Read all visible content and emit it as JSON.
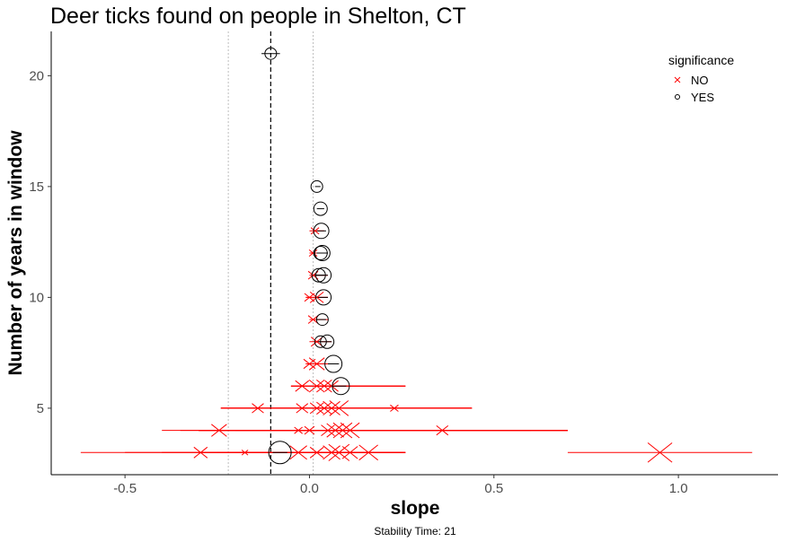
{
  "chart_data": {
    "type": "scatter",
    "title": "Deer ticks found on people in Shelton, CT",
    "xlabel": "slope",
    "ylabel": "Number of years in window",
    "caption": "Stability Time: 21",
    "xlim": [
      -0.7,
      1.27
    ],
    "ylim": [
      2.0,
      22.0
    ],
    "x_ticks": [
      -0.5,
      0.0,
      0.5,
      1.0
    ],
    "x_tick_labels": [
      "-0.5",
      "0.0",
      "0.5",
      "1.0"
    ],
    "y_ticks": [
      5,
      10,
      15,
      20
    ],
    "y_tick_labels": [
      "5",
      "10",
      "15",
      "20"
    ],
    "grid": false,
    "reference_lines": {
      "mean_slope_dashed": -0.105,
      "dotted": [
        -0.22,
        0.01
      ]
    },
    "legend": {
      "title": "significance",
      "position": "top-right",
      "entries": [
        {
          "label": "NO",
          "symbol": "x",
          "color": "#ff0000"
        },
        {
          "label": "YES",
          "symbol": "circle",
          "color": "#000000"
        }
      ]
    },
    "series": [
      {
        "name": "NO",
        "color": "#ff0000",
        "points": [
          {
            "x": -0.295,
            "y": 3,
            "lo": -0.62,
            "hi": 0.26,
            "size": 6
          },
          {
            "x": -0.175,
            "y": 3,
            "lo": -0.5,
            "hi": 0.2,
            "size": 2
          },
          {
            "x": -0.03,
            "y": 3,
            "lo": -0.4,
            "hi": 0.25,
            "size": 8
          },
          {
            "x": 0.02,
            "y": 3,
            "lo": -0.3,
            "hi": 0.26,
            "size": 6
          },
          {
            "x": 0.06,
            "y": 3,
            "lo": -0.25,
            "hi": 0.26,
            "size": 8
          },
          {
            "x": 0.08,
            "y": 3,
            "lo": -0.3,
            "hi": 0.26,
            "size": 10
          },
          {
            "x": 0.11,
            "y": 3,
            "lo": -0.2,
            "hi": 0.26,
            "size": 7
          },
          {
            "x": 0.16,
            "y": 3,
            "lo": -0.2,
            "hi": 0.26,
            "size": 9
          },
          {
            "x": 0.95,
            "y": 3,
            "lo": 0.7,
            "hi": 1.2,
            "size": 12
          },
          {
            "x": -0.245,
            "y": 4,
            "lo": -0.4,
            "hi": 0.7,
            "size": 7
          },
          {
            "x": -0.03,
            "y": 4,
            "lo": -0.3,
            "hi": 0.6,
            "size": 3
          },
          {
            "x": 0.0,
            "y": 4,
            "lo": -0.35,
            "hi": 0.7,
            "size": 4
          },
          {
            "x": 0.05,
            "y": 4,
            "lo": -0.3,
            "hi": 0.7,
            "size": 6
          },
          {
            "x": 0.07,
            "y": 4,
            "lo": -0.3,
            "hi": 0.7,
            "size": 8
          },
          {
            "x": 0.09,
            "y": 4,
            "lo": -0.3,
            "hi": 0.7,
            "size": 9
          },
          {
            "x": 0.11,
            "y": 4,
            "lo": -0.3,
            "hi": 0.7,
            "size": 9
          },
          {
            "x": 0.36,
            "y": 4,
            "lo": -0.2,
            "hi": 0.7,
            "size": 5
          },
          {
            "x": -0.14,
            "y": 5,
            "lo": -0.24,
            "hi": 0.44,
            "size": 5
          },
          {
            "x": -0.02,
            "y": 5,
            "lo": -0.24,
            "hi": 0.44,
            "size": 5
          },
          {
            "x": 0.02,
            "y": 5,
            "lo": -0.24,
            "hi": 0.44,
            "size": 6
          },
          {
            "x": 0.04,
            "y": 5,
            "lo": -0.24,
            "hi": 0.44,
            "size": 7
          },
          {
            "x": 0.06,
            "y": 5,
            "lo": -0.24,
            "hi": 0.44,
            "size": 8
          },
          {
            "x": 0.08,
            "y": 5,
            "lo": -0.24,
            "hi": 0.44,
            "size": 9
          },
          {
            "x": 0.23,
            "y": 5,
            "lo": -0.24,
            "hi": 0.44,
            "size": 3
          },
          {
            "x": -0.02,
            "y": 6,
            "lo": -0.05,
            "hi": 0.26,
            "size": 6
          },
          {
            "x": 0.02,
            "y": 6,
            "lo": -0.05,
            "hi": 0.26,
            "size": 7
          },
          {
            "x": 0.04,
            "y": 6,
            "lo": -0.05,
            "hi": 0.26,
            "size": 7
          },
          {
            "x": 0.06,
            "y": 6,
            "lo": -0.05,
            "hi": 0.26,
            "size": 6
          },
          {
            "x": 0.0,
            "y": 7,
            "lo": -0.01,
            "hi": 0.06,
            "size": 5
          },
          {
            "x": 0.02,
            "y": 7,
            "lo": -0.01,
            "hi": 0.06,
            "size": 7
          },
          {
            "x": 0.02,
            "y": 8,
            "lo": 0.0,
            "hi": 0.06,
            "size": 5
          },
          {
            "x": 0.01,
            "y": 9,
            "lo": 0.0,
            "hi": 0.05,
            "size": 4
          },
          {
            "x": 0.0,
            "y": 10,
            "lo": -0.01,
            "hi": 0.05,
            "size": 4
          },
          {
            "x": 0.02,
            "y": 10,
            "lo": -0.01,
            "hi": 0.05,
            "size": 6
          },
          {
            "x": 0.01,
            "y": 11,
            "lo": 0.0,
            "hi": 0.05,
            "size": 4
          },
          {
            "x": 0.01,
            "y": 12,
            "lo": 0.0,
            "hi": 0.04,
            "size": 3
          },
          {
            "x": 0.015,
            "y": 13,
            "lo": 0.0,
            "hi": 0.04,
            "size": 3
          }
        ]
      },
      {
        "name": "YES",
        "color": "#000000",
        "points": [
          {
            "x": -0.08,
            "y": 3,
            "lo": -0.1,
            "hi": -0.06,
            "size": 11
          },
          {
            "x": 0.085,
            "y": 6,
            "lo": 0.06,
            "hi": 0.1,
            "size": 8
          },
          {
            "x": 0.065,
            "y": 7,
            "lo": 0.05,
            "hi": 0.08,
            "size": 8
          },
          {
            "x": 0.03,
            "y": 8,
            "lo": 0.02,
            "hi": 0.04,
            "size": 5
          },
          {
            "x": 0.048,
            "y": 8,
            "lo": 0.04,
            "hi": 0.06,
            "size": 6
          },
          {
            "x": 0.035,
            "y": 9,
            "lo": 0.02,
            "hi": 0.045,
            "size": 5
          },
          {
            "x": 0.038,
            "y": 10,
            "lo": 0.02,
            "hi": 0.05,
            "size": 7
          },
          {
            "x": 0.025,
            "y": 11,
            "lo": 0.01,
            "hi": 0.04,
            "size": 6
          },
          {
            "x": 0.038,
            "y": 11,
            "lo": 0.02,
            "hi": 0.05,
            "size": 7
          },
          {
            "x": 0.03,
            "y": 12,
            "lo": 0.02,
            "hi": 0.04,
            "size": 6
          },
          {
            "x": 0.035,
            "y": 12,
            "lo": 0.02,
            "hi": 0.05,
            "size": 7
          },
          {
            "x": 0.032,
            "y": 13,
            "lo": 0.02,
            "hi": 0.045,
            "size": 7
          },
          {
            "x": 0.03,
            "y": 14,
            "lo": 0.02,
            "hi": 0.04,
            "size": 6
          },
          {
            "x": 0.02,
            "y": 15,
            "lo": 0.015,
            "hi": 0.03,
            "size": 5
          },
          {
            "x": -0.105,
            "y": 21,
            "lo": -0.13,
            "hi": -0.08,
            "size": 5
          }
        ]
      }
    ]
  }
}
